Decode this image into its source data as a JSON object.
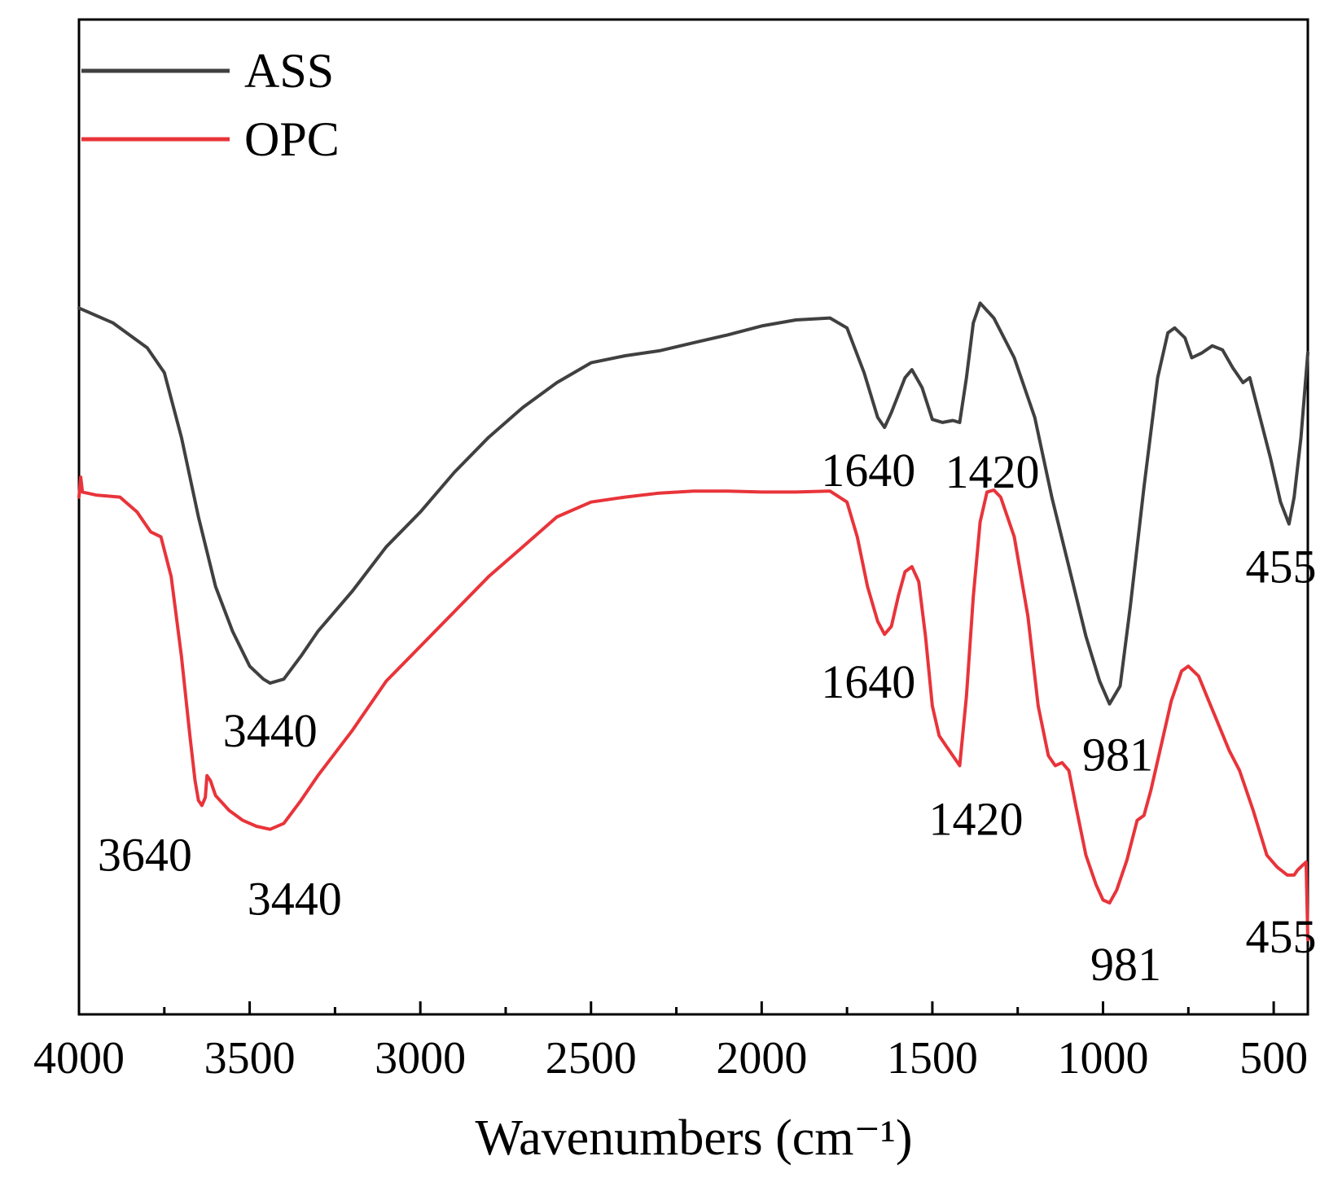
{
  "chart_data": {
    "type": "line",
    "title": "",
    "xlabel": "Wavenumbers (cm⁻¹)",
    "ylabel": "",
    "xlim": [
      4000,
      400
    ],
    "ylim": [
      0,
      100
    ],
    "x_reversed": true,
    "y_ticks_shown": false,
    "grid": false,
    "legend_position": "top-left",
    "x_major_ticks": [
      4000,
      3500,
      3000,
      2500,
      2000,
      1500,
      1000,
      500
    ],
    "x_minor_ticks": [
      3750,
      3250,
      2750,
      2250,
      1750,
      1250,
      750
    ],
    "x_tick_labels": [
      "4000",
      "3500",
      "3000",
      "2500",
      "2000",
      "1500",
      "1000",
      "500"
    ],
    "series": [
      {
        "name": "ASS",
        "color": "#404040",
        "points": [
          [
            4000,
            71.0
          ],
          [
            3900,
            69.5
          ],
          [
            3800,
            67.0
          ],
          [
            3750,
            64.5
          ],
          [
            3700,
            58.0
          ],
          [
            3650,
            50.0
          ],
          [
            3600,
            43.0
          ],
          [
            3550,
            38.5
          ],
          [
            3500,
            35.0
          ],
          [
            3460,
            33.7
          ],
          [
            3440,
            33.3
          ],
          [
            3400,
            33.7
          ],
          [
            3350,
            36.0
          ],
          [
            3300,
            38.5
          ],
          [
            3200,
            42.5
          ],
          [
            3100,
            47.0
          ],
          [
            3000,
            50.5
          ],
          [
            2900,
            54.5
          ],
          [
            2800,
            58.0
          ],
          [
            2700,
            61.0
          ],
          [
            2600,
            63.5
          ],
          [
            2500,
            65.5
          ],
          [
            2400,
            66.2
          ],
          [
            2300,
            66.7
          ],
          [
            2200,
            67.5
          ],
          [
            2100,
            68.3
          ],
          [
            2000,
            69.2
          ],
          [
            1900,
            69.8
          ],
          [
            1800,
            70.0
          ],
          [
            1750,
            69.0
          ],
          [
            1700,
            64.5
          ],
          [
            1660,
            60.0
          ],
          [
            1640,
            59.0
          ],
          [
            1620,
            60.5
          ],
          [
            1580,
            64.0
          ],
          [
            1560,
            64.8
          ],
          [
            1530,
            63.0
          ],
          [
            1500,
            59.8
          ],
          [
            1470,
            59.5
          ],
          [
            1440,
            59.7
          ],
          [
            1420,
            59.5
          ],
          [
            1400,
            64.0
          ],
          [
            1380,
            69.5
          ],
          [
            1360,
            71.5
          ],
          [
            1320,
            70.0
          ],
          [
            1260,
            66.0
          ],
          [
            1200,
            60.0
          ],
          [
            1150,
            52.0
          ],
          [
            1100,
            45.0
          ],
          [
            1050,
            38.0
          ],
          [
            1010,
            33.5
          ],
          [
            981,
            31.2
          ],
          [
            950,
            33.0
          ],
          [
            920,
            41.0
          ],
          [
            880,
            53.0
          ],
          [
            840,
            64.0
          ],
          [
            810,
            68.5
          ],
          [
            790,
            69.0
          ],
          [
            760,
            68.0
          ],
          [
            740,
            66.0
          ],
          [
            710,
            66.5
          ],
          [
            680,
            67.2
          ],
          [
            650,
            66.8
          ],
          [
            620,
            65.0
          ],
          [
            590,
            63.5
          ],
          [
            570,
            64.0
          ],
          [
            540,
            60.0
          ],
          [
            510,
            56.0
          ],
          [
            480,
            51.5
          ],
          [
            455,
            49.3
          ],
          [
            440,
            52.0
          ],
          [
            420,
            58.0
          ],
          [
            400,
            66.5
          ]
        ]
      },
      {
        "name": "OPC",
        "color": "#e8343a",
        "points": [
          [
            4000,
            52.0
          ],
          [
            3995,
            54.0
          ],
          [
            3990,
            52.5
          ],
          [
            3950,
            52.2
          ],
          [
            3880,
            52.0
          ],
          [
            3830,
            50.5
          ],
          [
            3790,
            48.5
          ],
          [
            3760,
            48.0
          ],
          [
            3730,
            44.0
          ],
          [
            3700,
            36.0
          ],
          [
            3675,
            28.0
          ],
          [
            3660,
            23.5
          ],
          [
            3650,
            21.5
          ],
          [
            3640,
            21.0
          ],
          [
            3630,
            21.8
          ],
          [
            3625,
            24.0
          ],
          [
            3615,
            23.5
          ],
          [
            3600,
            22.0
          ],
          [
            3560,
            20.5
          ],
          [
            3520,
            19.5
          ],
          [
            3480,
            18.9
          ],
          [
            3440,
            18.6
          ],
          [
            3400,
            19.2
          ],
          [
            3350,
            21.5
          ],
          [
            3300,
            24.0
          ],
          [
            3200,
            28.5
          ],
          [
            3100,
            33.5
          ],
          [
            3000,
            37.0
          ],
          [
            2900,
            40.5
          ],
          [
            2800,
            44.0
          ],
          [
            2700,
            47.0
          ],
          [
            2600,
            50.0
          ],
          [
            2500,
            51.5
          ],
          [
            2400,
            52.0
          ],
          [
            2300,
            52.4
          ],
          [
            2200,
            52.6
          ],
          [
            2100,
            52.6
          ],
          [
            2000,
            52.5
          ],
          [
            1900,
            52.5
          ],
          [
            1800,
            52.6
          ],
          [
            1750,
            51.5
          ],
          [
            1720,
            48.0
          ],
          [
            1690,
            43.0
          ],
          [
            1660,
            39.5
          ],
          [
            1640,
            38.2
          ],
          [
            1620,
            39.0
          ],
          [
            1600,
            42.0
          ],
          [
            1580,
            44.5
          ],
          [
            1560,
            45.0
          ],
          [
            1540,
            43.5
          ],
          [
            1520,
            38.0
          ],
          [
            1500,
            31.0
          ],
          [
            1480,
            28.0
          ],
          [
            1460,
            27.0
          ],
          [
            1440,
            26.0
          ],
          [
            1420,
            25.0
          ],
          [
            1400,
            32.0
          ],
          [
            1380,
            42.0
          ],
          [
            1360,
            49.5
          ],
          [
            1340,
            52.5
          ],
          [
            1320,
            52.7
          ],
          [
            1300,
            52.0
          ],
          [
            1260,
            48.0
          ],
          [
            1220,
            40.0
          ],
          [
            1190,
            31.0
          ],
          [
            1160,
            26.0
          ],
          [
            1140,
            25.0
          ],
          [
            1120,
            25.3
          ],
          [
            1100,
            24.5
          ],
          [
            1080,
            21.0
          ],
          [
            1050,
            16.0
          ],
          [
            1020,
            13.0
          ],
          [
            1000,
            11.5
          ],
          [
            981,
            11.2
          ],
          [
            960,
            12.5
          ],
          [
            930,
            15.5
          ],
          [
            900,
            19.5
          ],
          [
            880,
            20.0
          ],
          [
            860,
            22.5
          ],
          [
            830,
            27.0
          ],
          [
            800,
            31.5
          ],
          [
            770,
            34.5
          ],
          [
            750,
            35.0
          ],
          [
            720,
            34.0
          ],
          [
            690,
            31.5
          ],
          [
            660,
            29.0
          ],
          [
            630,
            26.5
          ],
          [
            600,
            24.5
          ],
          [
            560,
            20.5
          ],
          [
            520,
            16.0
          ],
          [
            490,
            14.8
          ],
          [
            460,
            14.0
          ],
          [
            440,
            14.0
          ],
          [
            430,
            14.5
          ],
          [
            415,
            15.0
          ],
          [
            405,
            15.3
          ],
          [
            400,
            7.5
          ]
        ]
      }
    ],
    "annotations": [
      {
        "series": "ASS",
        "text": "3440",
        "x": 3440
      },
      {
        "series": "ASS",
        "text": "1640",
        "x": 1640
      },
      {
        "series": "ASS",
        "text": "1420",
        "x": 1420
      },
      {
        "series": "ASS",
        "text": "981",
        "x": 981
      },
      {
        "series": "ASS",
        "text": "455",
        "x": 455
      },
      {
        "series": "OPC",
        "text": "3640",
        "x": 3640
      },
      {
        "series": "OPC",
        "text": "3440",
        "x": 3440
      },
      {
        "series": "OPC",
        "text": "1640",
        "x": 1640
      },
      {
        "series": "OPC",
        "text": "1420",
        "x": 1420
      },
      {
        "series": "OPC",
        "text": "981",
        "x": 981
      },
      {
        "series": "OPC",
        "text": "455",
        "x": 455
      }
    ]
  }
}
